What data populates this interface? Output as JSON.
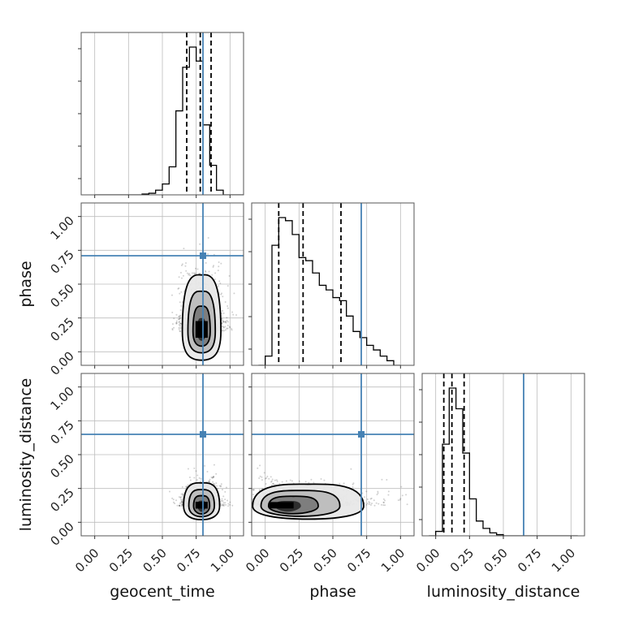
{
  "chart_data": {
    "type": "corner",
    "parameters": [
      {
        "key": "geocent_time",
        "label": "geocent_time",
        "truth": 0.8,
        "quantiles": [
          0.68,
          0.78,
          0.86
        ]
      },
      {
        "key": "phase",
        "label": "phase",
        "truth": 0.71,
        "quantiles": [
          0.1,
          0.28,
          0.56
        ]
      },
      {
        "key": "luminosity_distance",
        "label": "luminosity_distance",
        "truth": 0.65,
        "quantiles": [
          0.06,
          0.12,
          0.21
        ]
      }
    ],
    "range": [
      -0.1,
      1.1
    ],
    "tick_values": [
      0.0,
      0.25,
      0.5,
      0.75,
      1.0
    ],
    "tick_labels": [
      "0.00",
      "0.25",
      "0.50",
      "0.75",
      "1.00"
    ],
    "grid": true,
    "colors": {
      "truth": "#4682b4",
      "hist": "#000000",
      "density": "#000000",
      "grid": "#bdbdbd"
    },
    "histograms": [
      {
        "param": "geocent_time",
        "bin_start": 0.0,
        "bin_width": 0.05,
        "values": [
          0,
          0,
          0,
          0,
          0,
          0,
          0,
          0.005,
          0.01,
          0.03,
          0.07,
          0.18,
          0.54,
          0.82,
          0.95,
          0.86,
          0.45,
          0.19,
          0.03,
          0,
          0,
          0
        ]
      },
      {
        "param": "phase",
        "bin_start": -0.05,
        "bin_width": 0.05,
        "values": [
          0,
          0.06,
          0.78,
          0.96,
          0.94,
          0.85,
          0.7,
          0.68,
          0.6,
          0.52,
          0.49,
          0.44,
          0.42,
          0.32,
          0.22,
          0.18,
          0.13,
          0.1,
          0.06,
          0.03,
          0
        ]
      },
      {
        "param": "luminosity_distance",
        "bin_start": -0.05,
        "bin_width": 0.05,
        "values": [
          0,
          0.03,
          0.62,
          1.0,
          0.86,
          0.56,
          0.25,
          0.1,
          0.05,
          0.02,
          0.008,
          0,
          0,
          0,
          0,
          0,
          0,
          0,
          0,
          0,
          0,
          0
        ]
      }
    ],
    "density_2d": [
      {
        "x": "geocent_time",
        "y": "phase",
        "center": [
          0.79,
          0.15
        ],
        "sigma": [
          0.075,
          0.22
        ],
        "peak_y": 0.15,
        "tail_y": 0.85
      },
      {
        "x": "geocent_time",
        "y": "luminosity_distance",
        "center": [
          0.79,
          0.12
        ],
        "sigma": [
          0.07,
          0.09
        ]
      },
      {
        "x": "phase",
        "y": "luminosity_distance",
        "center": [
          0.12,
          0.12
        ],
        "sigma": [
          0.32,
          0.085
        ],
        "skew": 0.35
      }
    ]
  }
}
